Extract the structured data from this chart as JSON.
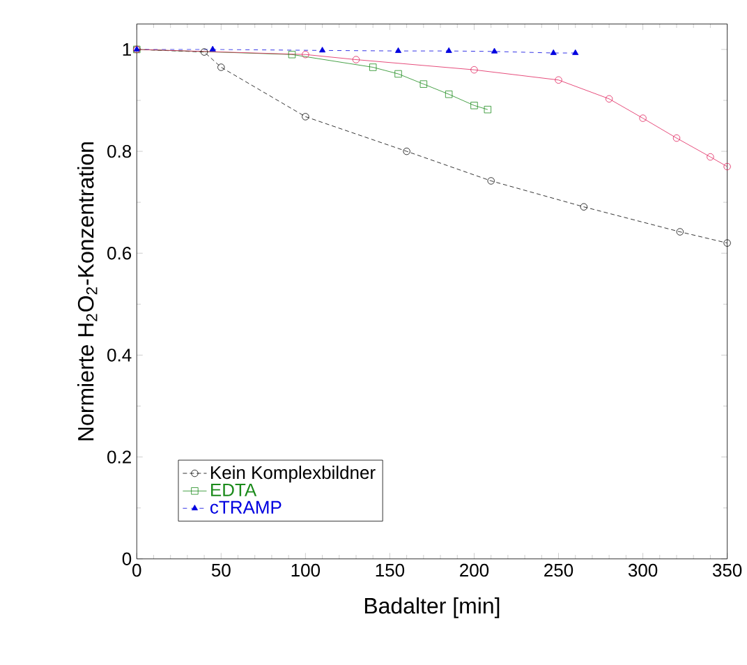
{
  "chart_data": {
    "type": "line",
    "xlabel": "Badalter [min]",
    "ylabel": "Normierte H$_{2}$O$_{2}$-Konzentration",
    "xlim": [
      0,
      350
    ],
    "ylim": [
      0,
      1.05
    ],
    "xticks": [
      0,
      50,
      100,
      150,
      200,
      250,
      300,
      350
    ],
    "yticks": [
      0,
      0.2,
      0.4,
      0.6,
      0.8,
      1
    ],
    "grid": false,
    "legend": "bottom left",
    "series": [
      {
        "name": "Kein Komplexbildner",
        "color": "#000000",
        "marker": "circle",
        "line_style": "dotted",
        "x": [
          0,
          40,
          50,
          100,
          160,
          210,
          265,
          322,
          350
        ],
        "values": [
          1,
          0.995,
          0.965,
          0.868,
          0.8,
          0.742,
          0.691,
          0.642,
          0.62
        ]
      },
      {
        "name": "EDTA",
        "color": "#1a8a1a",
        "marker": "square",
        "line_style": "solid",
        "x": [
          0,
          92,
          140,
          155,
          170,
          185,
          200,
          208
        ],
        "values": [
          1,
          0.99,
          0.965,
          0.952,
          0.932,
          0.912,
          0.89,
          0.882
        ]
      },
      {
        "name": "cTRAMP",
        "color": "#0000e0",
        "marker": "triangle",
        "line_style": "dashed",
        "x": [
          0,
          45,
          110,
          155,
          185,
          212,
          247,
          260
        ],
        "values": [
          1,
          1,
          0.998,
          0.997,
          0.997,
          0.996,
          0.993,
          0.993
        ]
      },
      {
        "color": "#e0205a",
        "marker": "circle",
        "line_style": "solid",
        "x": [
          0,
          100,
          130,
          200,
          250,
          280,
          300,
          320,
          340,
          350
        ],
        "values": [
          1,
          0.99,
          0.98,
          0.96,
          0.94,
          0.903,
          0.865,
          0.826,
          0.789,
          0.77
        ]
      }
    ]
  }
}
